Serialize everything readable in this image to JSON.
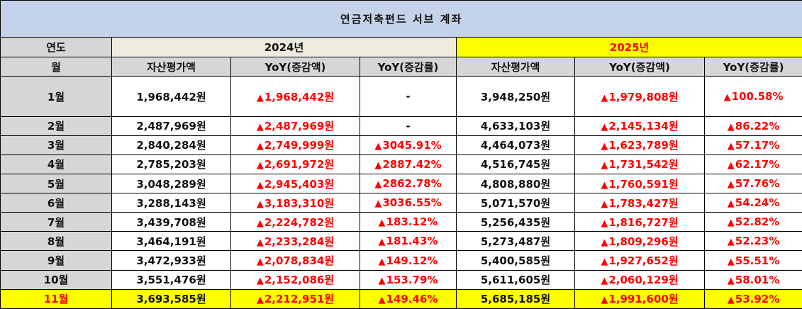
{
  "title": "연금저축펀드 서브 계좌",
  "header": {
    "year_label": "연도",
    "month_label": "월",
    "year_2024": "2024년",
    "year_2025": "2025년",
    "col_asset": "자산평가액",
    "col_yoy_amount": "YoY(증감액)",
    "col_yoy_rate": "YoY(증감률)"
  },
  "up_symbol": "▲",
  "colors": {
    "title_bg": "#c5d3ea",
    "highlight": "#ffff00",
    "up": "#ff0000",
    "header_bg": "#d6d6d6",
    "year2024_bg": "#ecebdd"
  },
  "rows": [
    {
      "month": "1월",
      "a24": "1,968,442원",
      "d24": "1,968,442원",
      "r24": "-",
      "a25": "3,948,250원",
      "d25": "1,979,808원",
      "r25": "100.58%"
    },
    {
      "month": "2월",
      "a24": "2,487,969원",
      "d24": "2,487,969원",
      "r24": "-",
      "a25": "4,633,103원",
      "d25": "2,145,134원",
      "r25": "86.22%"
    },
    {
      "month": "3월",
      "a24": "2,840,284원",
      "d24": "2,749,999원",
      "r24": "3045.91%",
      "a25": "4,464,073원",
      "d25": "1,623,789원",
      "r25": "57.17%"
    },
    {
      "month": "4월",
      "a24": "2,785,203원",
      "d24": "2,691,972원",
      "r24": "2887.42%",
      "a25": "4,516,745원",
      "d25": "1,731,542원",
      "r25": "62.17%"
    },
    {
      "month": "5월",
      "a24": "3,048,289원",
      "d24": "2,945,403원",
      "r24": "2862.78%",
      "a25": "4,808,880원",
      "d25": "1,760,591원",
      "r25": "57.76%"
    },
    {
      "month": "6월",
      "a24": "3,288,143원",
      "d24": "3,183,310원",
      "r24": "3036.55%",
      "a25": "5,071,570원",
      "d25": "1,783,427원",
      "r25": "54.24%"
    },
    {
      "month": "7월",
      "a24": "3,439,708원",
      "d24": "2,224,782원",
      "r24": "183.12%",
      "a25": "5,256,435원",
      "d25": "1,816,727원",
      "r25": "52.82%"
    },
    {
      "month": "8월",
      "a24": "3,464,191원",
      "d24": "2,233,284원",
      "r24": "181.43%",
      "a25": "5,273,487원",
      "d25": "1,809,296원",
      "r25": "52.23%"
    },
    {
      "month": "9월",
      "a24": "3,472,933원",
      "d24": "2,078,834원",
      "r24": "149.12%",
      "a25": "5,400,585원",
      "d25": "1,927,652원",
      "r25": "55.51%"
    },
    {
      "month": "10월",
      "a24": "3,551,476원",
      "d24": "2,152,086원",
      "r24": "153.79%",
      "a25": "5,611,605원",
      "d25": "2,060,129원",
      "r25": "58.01%"
    },
    {
      "month": "11월",
      "a24": "3,693,585원",
      "d24": "2,212,951원",
      "r24": "149.46%",
      "a25": "5,685,185원",
      "d25": "1,991,600원",
      "r25": "53.92%"
    }
  ]
}
